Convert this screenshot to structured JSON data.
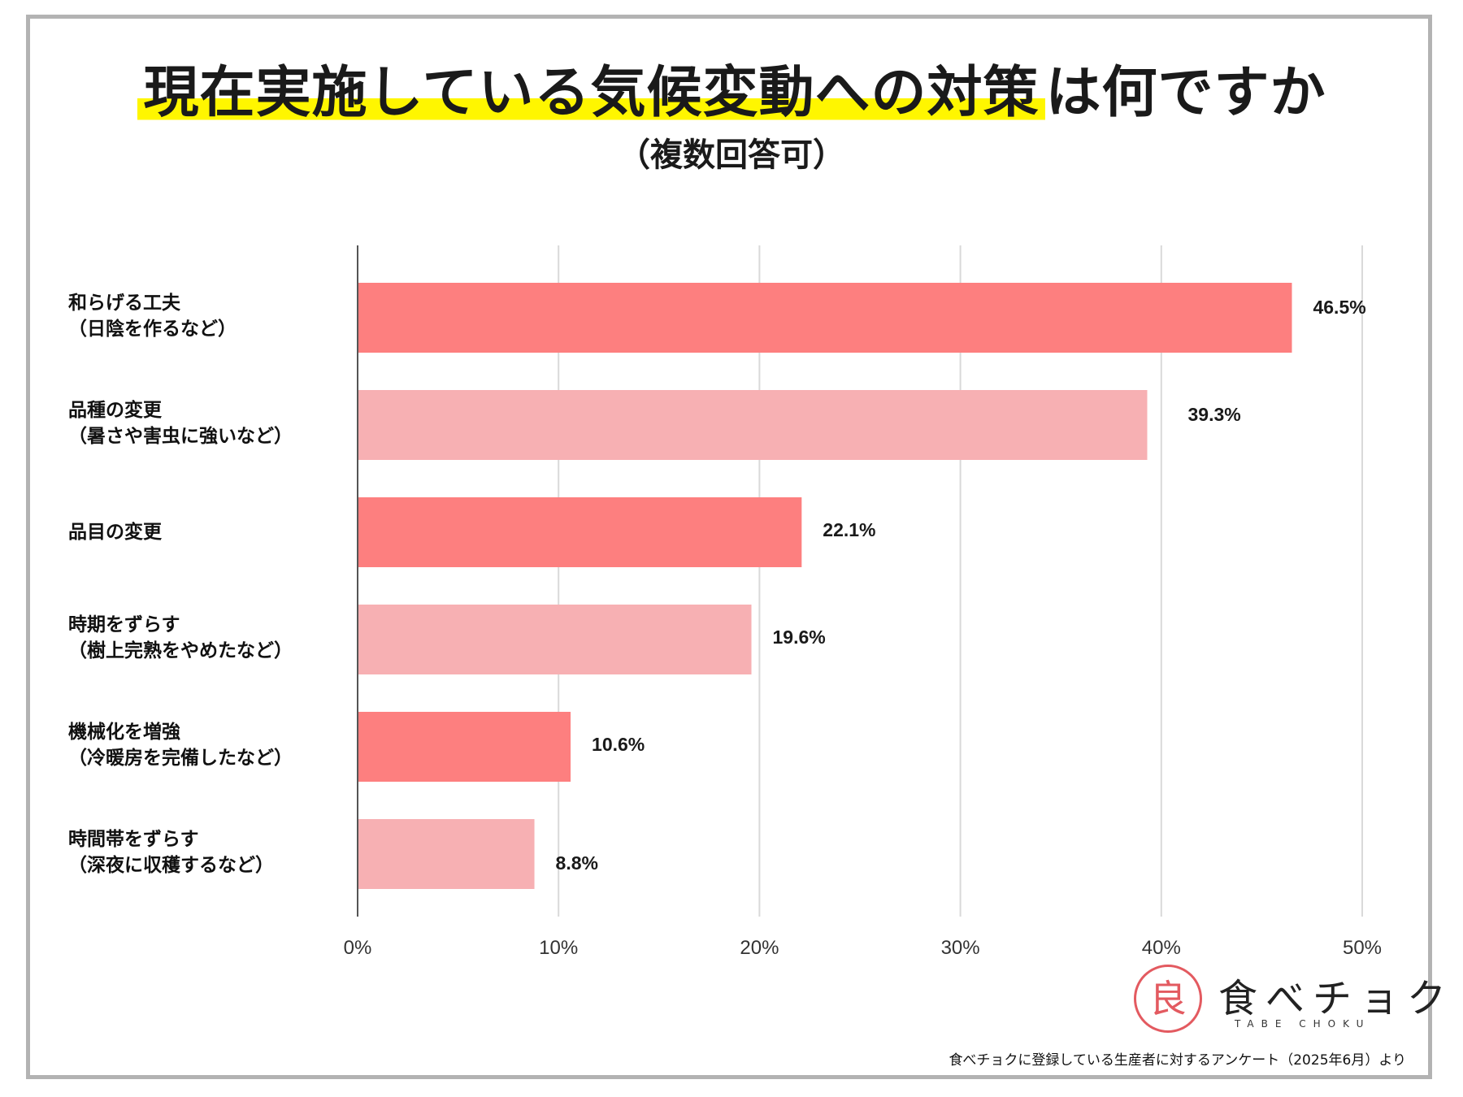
{
  "header": {
    "title_highlight": "現在実施している気候変動への対策",
    "title_rest": "は何ですか",
    "subtitle": "（複数回答可）"
  },
  "chart_data": {
    "type": "bar",
    "orientation": "horizontal",
    "categories": [
      [
        "和らげる工夫",
        "（日陰を作るなど）"
      ],
      [
        "品種の変更",
        "（暑さや害虫に強いなど）"
      ],
      [
        "品目の変更"
      ],
      [
        "時期をずらす",
        "（樹上完熟をやめたなど）"
      ],
      [
        "機械化を増強",
        "（冷暖房を完備したなど）"
      ],
      [
        "時間帯をずらす",
        "（深夜に収穫するなど）"
      ]
    ],
    "values": [
      46.5,
      39.3,
      22.1,
      19.6,
      10.6,
      8.8
    ],
    "value_labels": [
      "46.5%",
      "39.3%",
      "22.1%",
      "19.6%",
      "10.6%",
      "8.8%"
    ],
    "xlim": [
      0,
      50
    ],
    "xticks": [
      "0%",
      "10%",
      "20%",
      "30%",
      "40%",
      "50%"
    ],
    "grid": true,
    "bar_colors": [
      "#fd7f7f",
      "#f7b0b3"
    ]
  },
  "logo": {
    "mark": "良",
    "name": "食べチョク",
    "sub": "TABE CHOKU"
  },
  "footer": {
    "source": "食べチョクに登録している生産者に対するアンケート（2025年6月）より"
  }
}
